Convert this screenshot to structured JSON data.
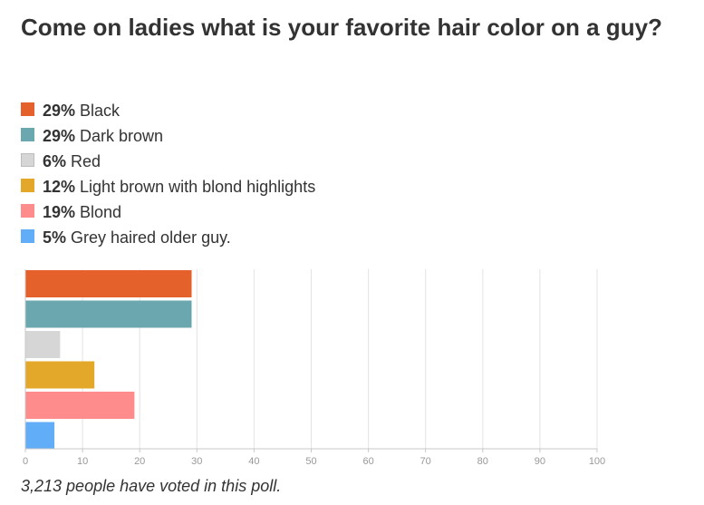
{
  "poll": {
    "title": "Come on ladies what is your favorite hair color on a guy?",
    "footer": "3,213 people have voted in this poll."
  },
  "chart_data": {
    "type": "bar",
    "orientation": "horizontal",
    "categories": [
      "Black",
      "Dark brown",
      "Red",
      "Light brown with blond highlights",
      "Blond",
      "Grey haired older guy."
    ],
    "values": [
      29,
      29,
      6,
      12,
      19,
      5
    ],
    "percent_labels": [
      "29%",
      "29%",
      "6%",
      "12%",
      "19%",
      "5%"
    ],
    "colors": [
      "#e4612c",
      "#6ba7ae",
      "#d6d6d6",
      "#e3a829",
      "#ff8c8c",
      "#62adf7"
    ],
    "xlim": [
      0,
      100
    ],
    "xticks": [
      0,
      10,
      20,
      30,
      40,
      50,
      60,
      70,
      80,
      90,
      100
    ],
    "grid": true,
    "legend_placement": "top-left",
    "title": "",
    "xlabel": "",
    "ylabel": ""
  }
}
